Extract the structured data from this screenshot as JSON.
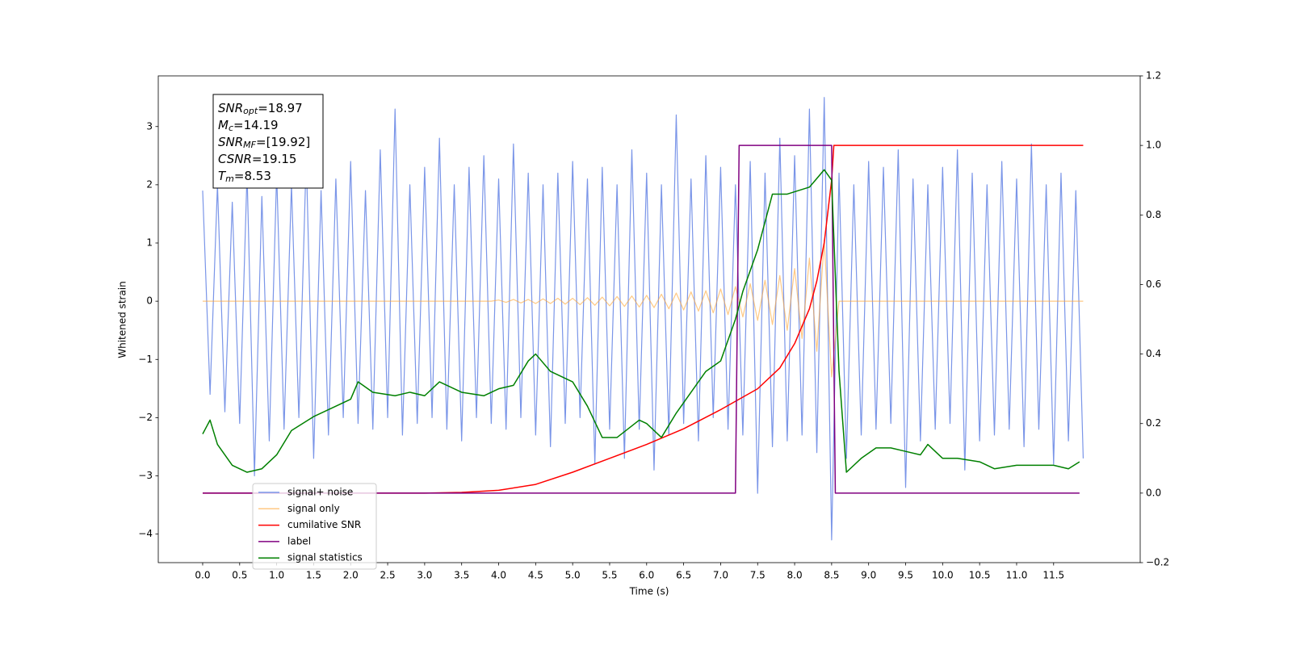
{
  "chart_data": {
    "type": "line",
    "xlabel": "Time (s)",
    "ylabel": "Whitened strain",
    "xlim": [
      -0.6,
      12.67
    ],
    "ylim": [
      -4.49,
      3.87
    ],
    "y2lim": [
      -0.2,
      1.2
    ],
    "xticks": [
      {
        "value": 0,
        "label": "0.0"
      },
      0.5,
      {
        "value": 1,
        "label": "1.0"
      },
      1.5,
      {
        "value": 2,
        "label": "2.0"
      },
      2.5,
      {
        "value": 3,
        "label": "3.0"
      },
      3.5,
      {
        "value": 4,
        "label": "4.0"
      },
      4.5,
      {
        "value": 5,
        "label": "5.0"
      },
      5.5,
      {
        "value": 6,
        "label": "6.0"
      },
      6.5,
      {
        "value": 7,
        "label": "7.0"
      },
      7.5,
      {
        "value": 8,
        "label": "8.0"
      },
      8.5,
      {
        "value": 9,
        "label": "9.0"
      },
      9.5,
      {
        "value": 10,
        "label": "10.0"
      },
      10.5,
      {
        "value": 11,
        "label": "11.0"
      },
      11.5
    ],
    "yticks": [
      {
        "value": -4,
        "label": "−4"
      },
      {
        "value": -3,
        "label": "−3"
      },
      {
        "value": -2,
        "label": "−2"
      },
      {
        "value": -1,
        "label": "−1"
      },
      0,
      1,
      2,
      3
    ],
    "y2ticks": [
      {
        "value": -0.2,
        "label": "−0.2"
      },
      {
        "value": 0,
        "label": "0.0"
      },
      0.2,
      0.4,
      0.6,
      0.8,
      {
        "value": 1,
        "label": "1.0"
      },
      1.2
    ],
    "legend": "lower left",
    "annotation": [
      {
        "name": "SNR",
        "sub": "opt",
        "text": "=18.97"
      },
      {
        "name": "M",
        "sub": "c",
        "text": "=14.19"
      },
      {
        "name": "SNR",
        "sub": "MF",
        "text": "=[19.92]"
      },
      {
        "name": "CSNR",
        "text": "=19.15"
      },
      {
        "name": "T",
        "sub": "m",
        "text": "=8.53"
      }
    ],
    "x": [
      0,
      0.1,
      0.2,
      0.3,
      0.4,
      0.5,
      0.6,
      0.7,
      0.8,
      0.9,
      1,
      1.1,
      1.2,
      1.3,
      1.4,
      1.5,
      1.6,
      1.7,
      1.8,
      1.9,
      2,
      2.1,
      2.2,
      2.3,
      2.4,
      2.5,
      2.6,
      2.7,
      2.8,
      2.9,
      3,
      3.1,
      3.2,
      3.3,
      3.4,
      3.5,
      3.6,
      3.7,
      3.8,
      3.9,
      4,
      4.1,
      4.2,
      4.3,
      4.4,
      4.5,
      4.6,
      4.7,
      4.8,
      4.9,
      5,
      5.1,
      5.2,
      5.3,
      5.4,
      5.5,
      5.6,
      5.7,
      5.8,
      5.9,
      6,
      6.1,
      6.2,
      6.3,
      6.4,
      6.5,
      6.6,
      6.7,
      6.8,
      6.9,
      7,
      7.1,
      7.2,
      7.3,
      7.4,
      7.5,
      7.6,
      7.7,
      7.8,
      7.9,
      8,
      8.1,
      8.2,
      8.3,
      8.4,
      8.5,
      8.6,
      8.7,
      8.8,
      8.9,
      9,
      9.1,
      9.2,
      9.3,
      9.4,
      9.5,
      9.6,
      9.7,
      9.8,
      9.9,
      10,
      10.1,
      10.2,
      10.3,
      10.4,
      10.5,
      10.6,
      10.7,
      10.8,
      10.9,
      11,
      11.1,
      11.2,
      11.3,
      11.4,
      11.5,
      11.6,
      11.7,
      11.8,
      11.9
    ],
    "series": [
      {
        "name": "signal+ noise",
        "color": "#7a95e8",
        "values": [
          1.9,
          -1.6,
          2.0,
          -1.9,
          1.7,
          -2.1,
          2.2,
          -3.0,
          1.8,
          -2.4,
          2.2,
          -2.2,
          2.0,
          -2.0,
          2.5,
          -2.7,
          1.9,
          -2.3,
          2.1,
          -2.0,
          2.4,
          -2.1,
          1.9,
          -2.2,
          2.6,
          -2.0,
          3.3,
          -2.3,
          2.0,
          -2.1,
          2.3,
          -2.0,
          2.8,
          -2.2,
          2.0,
          -2.4,
          2.3,
          -2.0,
          2.5,
          -2.1,
          2.1,
          -2.2,
          2.7,
          -2.0,
          2.2,
          -2.3,
          2.0,
          -2.5,
          2.2,
          -2.1,
          2.4,
          -2.0,
          2.1,
          -2.8,
          2.3,
          -2.2,
          2.0,
          -2.7,
          2.6,
          -2.2,
          2.2,
          -2.9,
          2.0,
          -2.3,
          3.2,
          -2.1,
          2.1,
          -2.4,
          2.5,
          -2.0,
          2.3,
          -2.2,
          2.0,
          -2.3,
          2.4,
          -3.3,
          2.2,
          -2.5,
          2.8,
          -2.4,
          2.5,
          -2.3,
          3.3,
          -2.6,
          3.5,
          -4.1,
          2.2,
          -2.7,
          2.0,
          -2.3,
          2.4,
          -2.2,
          2.3,
          -2.1,
          2.6,
          -3.2,
          2.1,
          -2.4,
          2.0,
          -2.2,
          2.3,
          -2.1,
          2.6,
          -2.9,
          2.2,
          -2.4,
          2.0,
          -2.3,
          2.4,
          -2.2,
          2.1,
          -2.5,
          2.7,
          -2.2,
          2.0,
          -2.8,
          2.2,
          -2.4,
          1.9,
          -2.7
        ]
      },
      {
        "name": "signal only",
        "color": "#ffa533",
        "values": [
          0,
          0,
          0,
          0,
          0,
          0,
          0,
          0,
          0,
          0,
          0,
          0,
          0,
          0,
          0,
          0,
          0,
          0,
          0,
          0,
          0,
          0,
          0,
          0,
          0,
          0,
          0,
          0,
          0,
          0,
          0,
          0,
          0,
          0,
          0,
          0,
          0,
          0,
          0,
          0,
          0.02,
          -0.02,
          0.03,
          -0.03,
          0.03,
          -0.04,
          0.04,
          -0.04,
          0.05,
          -0.05,
          0.05,
          -0.06,
          0.06,
          -0.07,
          0.07,
          -0.08,
          0.08,
          -0.09,
          0.09,
          -0.1,
          0.1,
          -0.11,
          0.12,
          -0.13,
          0.14,
          -0.15,
          0.16,
          -0.17,
          0.18,
          -0.2,
          0.21,
          -0.23,
          0.25,
          -0.27,
          0.3,
          -0.33,
          0.36,
          -0.4,
          0.44,
          -0.5,
          0.56,
          -0.64,
          0.74,
          -0.86,
          1.05,
          -1.3,
          0,
          0,
          0,
          0,
          0,
          0,
          0,
          0,
          0,
          0,
          0,
          0,
          0,
          0,
          0,
          0,
          0,
          0,
          0,
          0,
          0,
          0,
          0,
          0,
          0,
          0,
          0,
          0,
          0,
          0,
          0,
          0,
          0,
          0
        ]
      },
      {
        "name": "cumilative SNR",
        "color": "#ff0000",
        "axis": "y2",
        "x": [
          0,
          3,
          3.5,
          4,
          4.5,
          5,
          5.5,
          6,
          6.5,
          7,
          7.5,
          7.8,
          8,
          8.2,
          8.3,
          8.4,
          8.5,
          8.53,
          11.9
        ],
        "values": [
          0,
          0,
          0.002,
          0.008,
          0.025,
          0.06,
          0.1,
          0.14,
          0.185,
          0.24,
          0.3,
          0.36,
          0.43,
          0.53,
          0.61,
          0.72,
          0.9,
          1.0,
          1.0
        ]
      },
      {
        "name": "label",
        "color": "#800080",
        "axis": "y2",
        "x": [
          0,
          7.2,
          7.25,
          8.5,
          8.55,
          11.85
        ],
        "values": [
          0,
          0,
          1.0,
          1.0,
          0,
          0
        ]
      },
      {
        "name": "signal statistics",
        "color": "#008000",
        "axis": "y2",
        "x": [
          0,
          0.1,
          0.2,
          0.4,
          0.6,
          0.8,
          1.0,
          1.2,
          1.5,
          1.8,
          2.0,
          2.1,
          2.3,
          2.6,
          2.8,
          3.0,
          3.2,
          3.5,
          3.8,
          4.0,
          4.2,
          4.4,
          4.5,
          4.7,
          5.0,
          5.2,
          5.4,
          5.6,
          5.9,
          6.0,
          6.2,
          6.4,
          6.6,
          6.8,
          7.0,
          7.2,
          7.3,
          7.5,
          7.7,
          7.9,
          8.2,
          8.4,
          8.5,
          8.6,
          8.7,
          8.9,
          9.1,
          9.3,
          9.5,
          9.7,
          9.8,
          10.0,
          10.2,
          10.5,
          10.7,
          11.0,
          11.3,
          11.5,
          11.7,
          11.85
        ],
        "values": [
          0.17,
          0.21,
          0.14,
          0.08,
          0.06,
          0.07,
          0.11,
          0.18,
          0.22,
          0.25,
          0.27,
          0.32,
          0.29,
          0.28,
          0.29,
          0.28,
          0.32,
          0.29,
          0.28,
          0.3,
          0.31,
          0.38,
          0.4,
          0.35,
          0.32,
          0.25,
          0.16,
          0.16,
          0.21,
          0.2,
          0.16,
          0.23,
          0.29,
          0.35,
          0.38,
          0.5,
          0.58,
          0.7,
          0.86,
          0.86,
          0.88,
          0.93,
          0.9,
          0.35,
          0.06,
          0.1,
          0.13,
          0.13,
          0.12,
          0.11,
          0.14,
          0.1,
          0.1,
          0.09,
          0.07,
          0.08,
          0.08,
          0.08,
          0.07,
          0.09
        ]
      }
    ]
  }
}
